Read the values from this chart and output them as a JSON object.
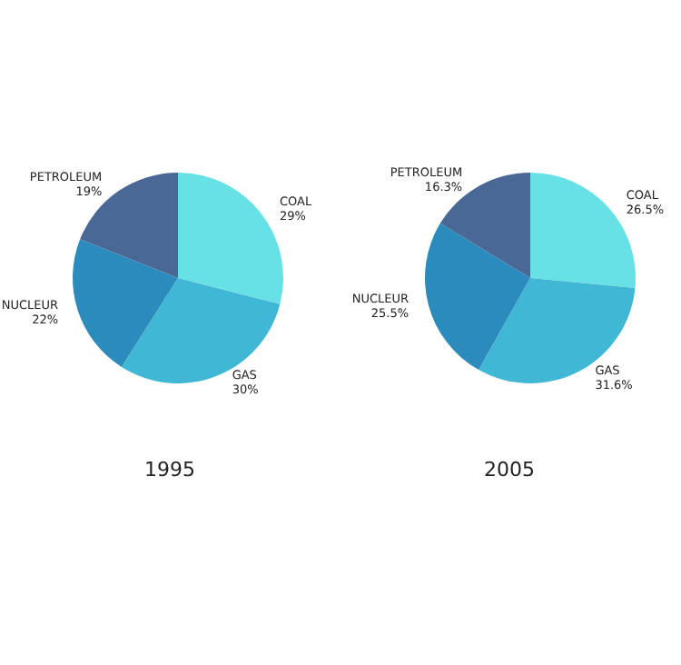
{
  "chart_data": [
    {
      "type": "pie",
      "title": "1995",
      "categories": [
        "COAL",
        "GAS",
        "NUCLEUR",
        "PETROLEUM"
      ],
      "values": [
        29,
        30,
        22,
        19
      ],
      "value_labels": [
        "29%",
        "30%",
        "22%",
        "19%"
      ],
      "colors": [
        "#68e1e6",
        "#41b7d6",
        "#2b8bbd",
        "#4a6896"
      ]
    },
    {
      "type": "pie",
      "title": "2005",
      "categories": [
        "COAL",
        "GAS",
        "NUCLEUR",
        "PETROLEUM"
      ],
      "values": [
        26.5,
        31.6,
        25.5,
        16.3
      ],
      "value_labels": [
        "26.5%",
        "31.6%",
        "25.5%",
        "16.3%"
      ],
      "colors": [
        "#68e1e6",
        "#41b7d6",
        "#2b8bbd",
        "#4a6896"
      ]
    }
  ]
}
